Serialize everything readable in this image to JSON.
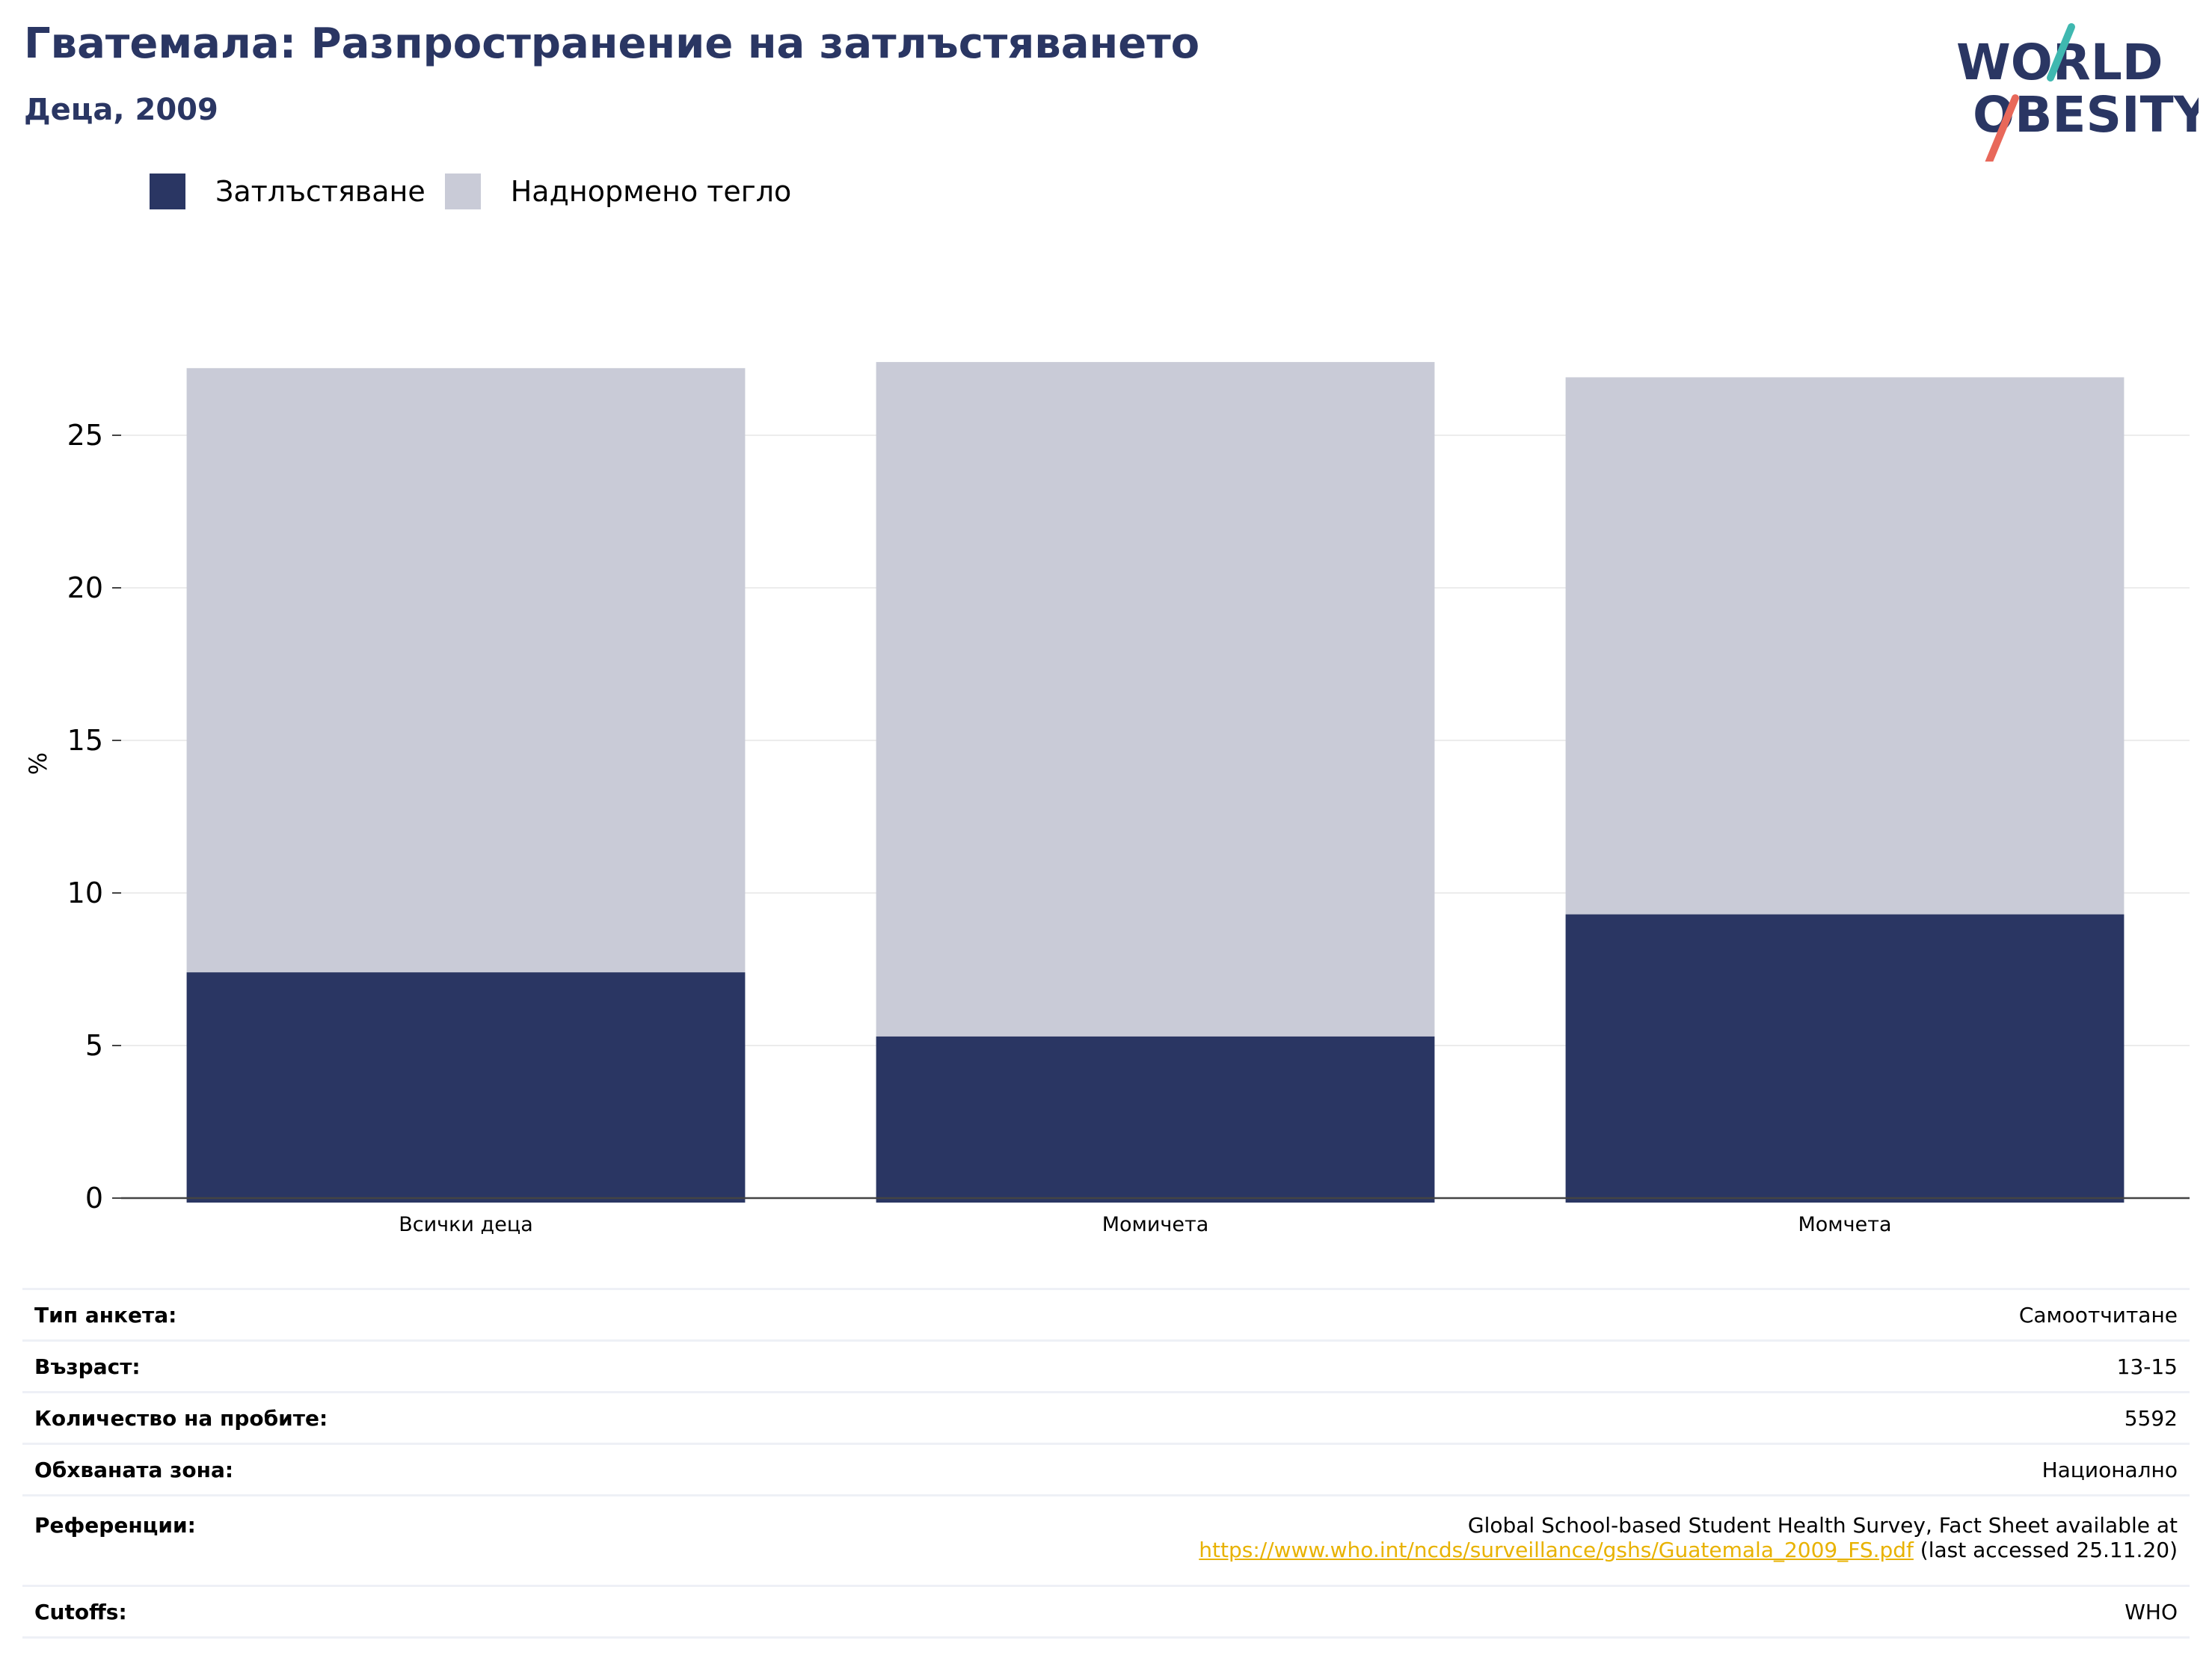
{
  "header": {
    "title": "Гватемала: Разпространение на затлъстяването",
    "subtitle": "Деца, 2009"
  },
  "logo": {
    "line1": "WORLD",
    "line2": "OBESITY"
  },
  "chart_data": {
    "type": "bar",
    "stacked": true,
    "categories": [
      "Всички деца",
      "Момичета",
      "Момчета"
    ],
    "series": [
      {
        "name": "Затлъстяване",
        "values": [
          7.4,
          5.3,
          9.3
        ],
        "color": "#2a3663"
      },
      {
        "name": "Наднормено тегло",
        "values": [
          19.8,
          22.1,
          17.6
        ],
        "color": "#c9cbd7"
      }
    ],
    "ylabel": "%",
    "ylim": [
      0,
      27.5
    ],
    "yticks": [
      0,
      5,
      10,
      15,
      20,
      25
    ],
    "grid": true,
    "legend": "top-left"
  },
  "info": {
    "survey_type_label": "Тип анкета:",
    "survey_type_value": "Самоотчитане",
    "age_label": "Възраст:",
    "age_value": "13-15",
    "sample_label": "Количество на пробите:",
    "sample_value": "5592",
    "area_label": "Обхваната зона:",
    "area_value": "Национално",
    "ref_label": "Референции:",
    "ref_prefix": "Global School-based Student Health Survey, Fact Sheet available at ",
    "ref_link": "https://www.who.int/ncds/surveillance/gshs/Guatemala_2009_FS.pdf",
    "ref_suffix": " (last accessed 25.11.20)",
    "cutoffs_label": "Cutoffs:",
    "cutoffs_value": "WHO"
  }
}
